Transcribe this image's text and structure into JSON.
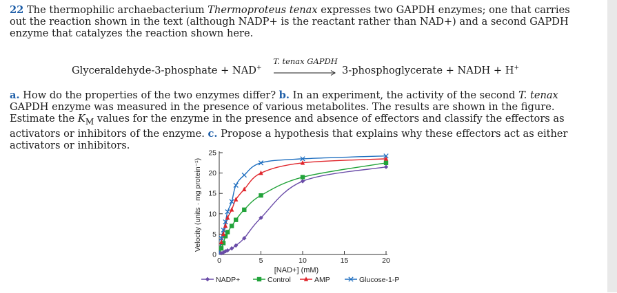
{
  "problem": {
    "number": "22",
    "intro_pre": " The thermophilic archaebacterium ",
    "organism": "Thermoproteus tenax",
    "intro_post": " expresses two GAPDH enzymes; one that carries out the reaction shown in the text (although NADP+ is the reactant rather than NAD+) and a second GAPDH enzyme that catalyzes the reaction shown here."
  },
  "equation": {
    "lhs": "Glyceraldehyde-3-phosphate + NAD",
    "lhs_sup": "+",
    "enzyme": "T. tenax GAPDH",
    "arrow": "⟶",
    "rhs": "3-phosphoglycerate + NADH + H",
    "rhs_sup": "+"
  },
  "questions": {
    "a_label": "a.",
    "a_text": " How do the properties of the two enzymes differ? ",
    "b_label": "b.",
    "b_text1": " In an experiment, the activity of the second ",
    "b_italic": "T. tenax",
    "b_text2": " GAPDH enzyme was measured in the presence of various metabolites. The results are shown in the figure. Estimate the ",
    "km_k": "K",
    "km_sub": "M",
    "b_text3": " values for the enzyme in the presence and absence of effectors and classify the effectors as activators or inhibitors of the enzyme. ",
    "c_label": "c.",
    "c_text": " Propose a hypothesis that explains why these effectors act as either activators or inhibitors."
  },
  "chart_data": {
    "type": "line",
    "title": "",
    "xlabel": "[NAD+] (mM)",
    "ylabel": "Velocity (units · mg protein⁻¹)",
    "xlim": [
      0,
      20
    ],
    "ylim": [
      0,
      25
    ],
    "xticks": [
      0,
      5,
      10,
      15,
      20
    ],
    "yticks": [
      0,
      5,
      10,
      15,
      20,
      25
    ],
    "grid": false,
    "legend_position": "bottom",
    "series": [
      {
        "name": "NADP+",
        "color": "#6a4ca8",
        "marker": "diamond",
        "x": [
          0.25,
          0.5,
          0.75,
          1,
          1.5,
          2,
          3,
          5,
          10,
          20
        ],
        "y": [
          0.3,
          0.5,
          0.8,
          1.0,
          1.5,
          2.2,
          4.0,
          9.0,
          18.0,
          21.5
        ]
      },
      {
        "name": "Control",
        "color": "#22a33a",
        "marker": "square",
        "x": [
          0.25,
          0.5,
          0.75,
          1,
          1.5,
          2,
          3,
          5,
          10,
          20
        ],
        "y": [
          1.5,
          2.8,
          4.5,
          5.5,
          7.0,
          8.5,
          11.0,
          14.5,
          19.0,
          22.5
        ]
      },
      {
        "name": "AMP",
        "color": "#e0252b",
        "marker": "triangle",
        "x": [
          0.25,
          0.5,
          0.75,
          1,
          1.5,
          2,
          3,
          5,
          10,
          20
        ],
        "y": [
          3.0,
          5.0,
          7.0,
          9.0,
          11.0,
          13.5,
          16.0,
          20.0,
          22.5,
          23.5
        ]
      },
      {
        "name": "Glucose-1-P",
        "color": "#1f6fc0",
        "marker": "x",
        "x": [
          0.25,
          0.5,
          0.75,
          1,
          1.5,
          2,
          3,
          5,
          10,
          20
        ],
        "y": [
          4.0,
          6.0,
          8.0,
          10.5,
          13.0,
          17.0,
          19.5,
          22.5,
          23.5,
          24.2
        ]
      }
    ]
  }
}
